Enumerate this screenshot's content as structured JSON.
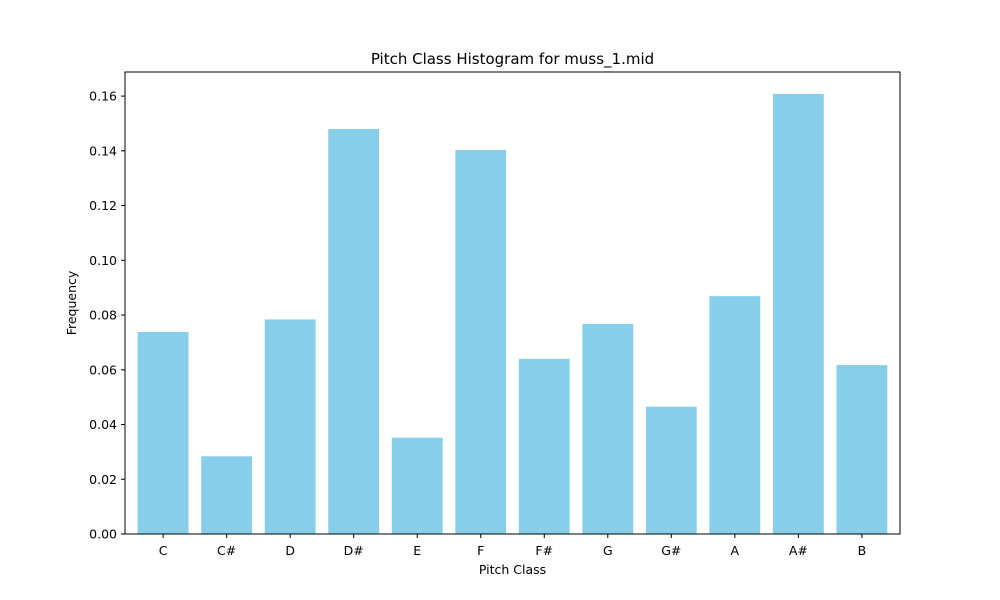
{
  "chart_data": {
    "type": "bar",
    "title": "Pitch Class Histogram for muss_1.mid",
    "xlabel": "Pitch Class",
    "ylabel": "Frequency",
    "categories": [
      "C",
      "C#",
      "D",
      "D#",
      "E",
      "F",
      "F#",
      "G",
      "G#",
      "A",
      "A#",
      "B"
    ],
    "values": [
      0.0738,
      0.0284,
      0.0784,
      0.148,
      0.0352,
      0.1403,
      0.064,
      0.0767,
      0.0465,
      0.0869,
      0.1608,
      0.0617
    ],
    "ylim": [
      0,
      0.1688
    ],
    "yticks": [
      0.0,
      0.02,
      0.04,
      0.06,
      0.08,
      0.1,
      0.12,
      0.14,
      0.16
    ],
    "ytick_labels": [
      "0.00",
      "0.02",
      "0.04",
      "0.06",
      "0.08",
      "0.10",
      "0.12",
      "0.14",
      "0.16"
    ],
    "bar_color": "#87ceeb",
    "grid": false,
    "legend": "none"
  }
}
